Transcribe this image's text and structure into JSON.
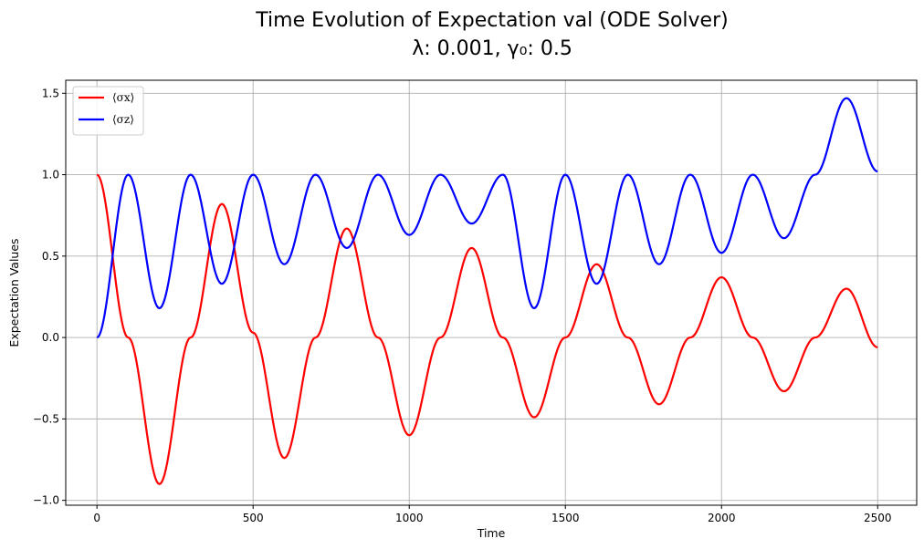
{
  "chart_data": {
    "type": "line",
    "title_line1": "Time Evolution of Expectation val (ODE Solver)",
    "title_line2": "λ: 0.001, γ₀: 0.5",
    "xlabel": "Time",
    "ylabel": "Expectation Values",
    "xlim": [
      -100,
      2625
    ],
    "ylim": [
      -1.03,
      1.58
    ],
    "xticks": [
      0,
      500,
      1000,
      1500,
      2000,
      2500
    ],
    "xtick_labels": [
      "0",
      "500",
      "1000",
      "1500",
      "2000",
      "2500"
    ],
    "yticks": [
      -1.0,
      -0.5,
      0.0,
      0.5,
      1.0,
      1.5
    ],
    "ytick_labels": [
      "−1.0",
      "−0.5",
      "0.0",
      "0.5",
      "1.0",
      "1.5"
    ],
    "grid": true,
    "legend_position": "upper-left",
    "series": [
      {
        "name": "⟨σx⟩",
        "color": "#ff0000",
        "points": [
          [
            0,
            1.0
          ],
          [
            100,
            0.0
          ],
          [
            200,
            -0.9
          ],
          [
            300,
            0.0
          ],
          [
            400,
            0.82
          ],
          [
            500,
            0.03
          ],
          [
            600,
            -0.74
          ],
          [
            700,
            0.0
          ],
          [
            800,
            0.67
          ],
          [
            900,
            0.0
          ],
          [
            1000,
            -0.6
          ],
          [
            1100,
            0.0
          ],
          [
            1200,
            0.55
          ],
          [
            1300,
            0.0
          ],
          [
            1400,
            -0.49
          ],
          [
            1500,
            0.0
          ],
          [
            1600,
            0.45
          ],
          [
            1700,
            0.0
          ],
          [
            1800,
            -0.41
          ],
          [
            1900,
            0.0
          ],
          [
            2000,
            0.37
          ],
          [
            2100,
            0.0
          ],
          [
            2200,
            -0.33
          ],
          [
            2300,
            0.0
          ],
          [
            2400,
            0.3
          ],
          [
            2500,
            -0.06
          ]
        ]
      },
      {
        "name": "⟨σz⟩",
        "color": "#0000ff",
        "points": [
          [
            0,
            0.0
          ],
          [
            100,
            1.0
          ],
          [
            200,
            0.18
          ],
          [
            300,
            1.0
          ],
          [
            400,
            0.33
          ],
          [
            500,
            1.0
          ],
          [
            600,
            0.45
          ],
          [
            700,
            1.0
          ],
          [
            800,
            0.55
          ],
          [
            900,
            1.0
          ],
          [
            1000,
            0.63
          ],
          [
            1100,
            1.0
          ],
          [
            1200,
            0.7
          ],
          [
            1300,
            1.0
          ],
          [
            1400,
            0.18
          ],
          [
            1500,
            1.0
          ],
          [
            1600,
            0.33
          ],
          [
            1700,
            1.0
          ],
          [
            1800,
            0.45
          ],
          [
            1900,
            1.0
          ],
          [
            2000,
            0.52
          ],
          [
            2100,
            1.0
          ],
          [
            2200,
            0.61
          ],
          [
            2300,
            1.0
          ],
          [
            2400,
            1.47
          ],
          [
            2500,
            1.02
          ]
        ]
      }
    ]
  }
}
